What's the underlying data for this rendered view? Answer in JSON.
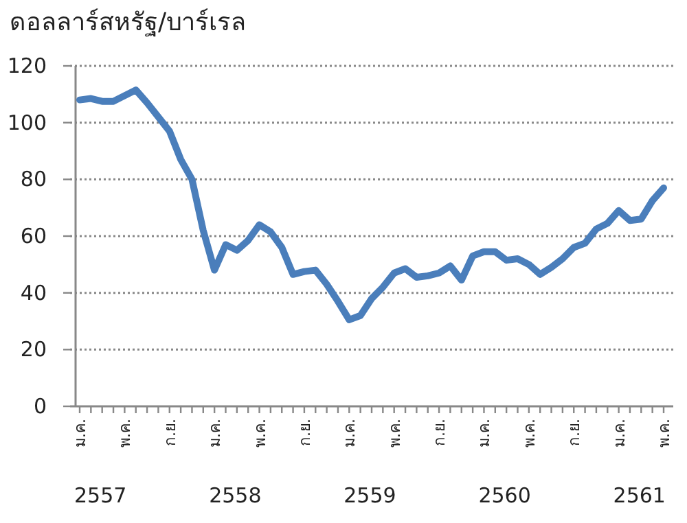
{
  "chart_data": {
    "type": "line",
    "ylabel": "ดอลลาร์สหรัฐ/บาร์เรล",
    "categories": [
      "ม.ค.",
      null,
      null,
      null,
      "พ.ค.",
      null,
      null,
      null,
      "ก.ย.",
      null,
      null,
      null,
      "ม.ค.",
      null,
      null,
      null,
      "พ.ค.",
      null,
      null,
      null,
      "ก.ย.",
      null,
      null,
      null,
      "ม.ค.",
      null,
      null,
      null,
      "พ.ค.",
      null,
      null,
      null,
      "ก.ย.",
      null,
      null,
      null,
      "ม.ค.",
      null,
      null,
      null,
      "พ.ค.",
      null,
      null,
      null,
      "ก.ย.",
      null,
      null,
      null,
      "ม.ค.",
      null,
      null,
      null,
      "พ.ค."
    ],
    "series": [
      {
        "color": "#4a7ebb",
        "values": [
          108,
          108.5,
          107.5,
          107.5,
          109.5,
          111.5,
          107,
          102,
          97,
          87,
          80,
          62,
          48,
          57,
          55,
          58.5,
          64,
          61.5,
          56,
          46.5,
          47.5,
          48,
          43,
          37,
          30.5,
          32,
          38,
          42,
          47,
          48.5,
          45.5,
          46,
          47,
          49.5,
          44.5,
          53,
          54.5,
          54.5,
          51.5,
          52,
          50,
          46.5,
          49,
          52,
          56,
          57.5,
          62.5,
          64.5,
          69,
          65.5,
          66,
          72.5,
          77
        ]
      }
    ],
    "ylim": [
      0,
      120
    ],
    "yticks": [
      0,
      20,
      40,
      60,
      80,
      100,
      120
    ],
    "grid": "y",
    "line_style": "solid",
    "annotations": [
      "2557",
      "2558",
      "2559",
      "2560",
      "2561"
    ]
  }
}
